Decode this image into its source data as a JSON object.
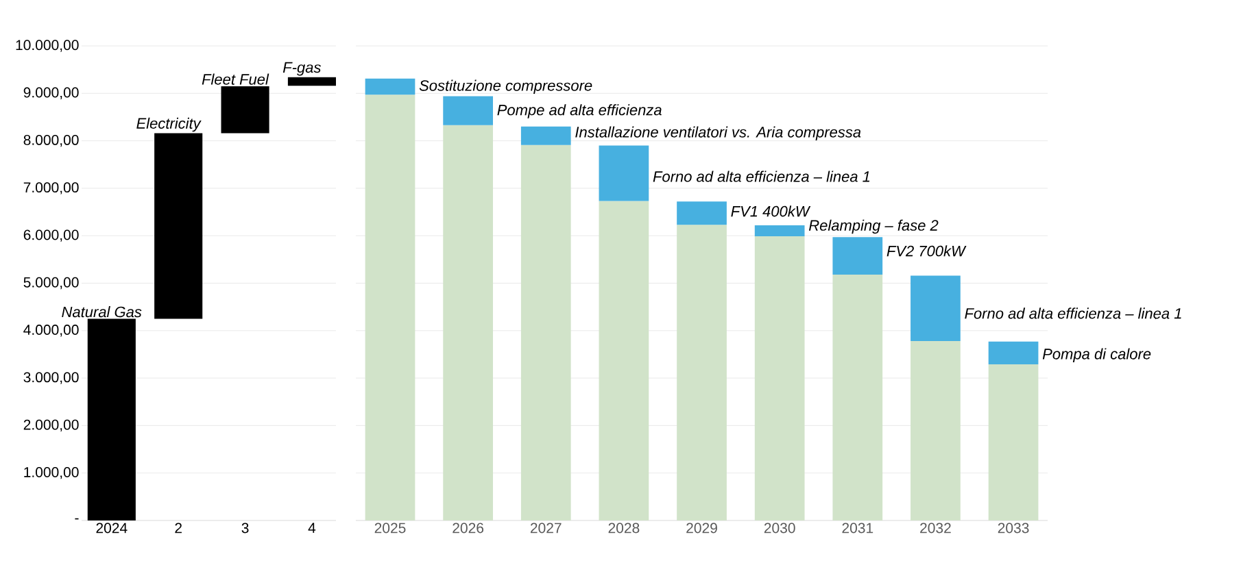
{
  "chart_data": [
    {
      "type": "bar",
      "categories": [
        "2024",
        "2",
        "3",
        "4"
      ],
      "values": [
        4250,
        3910,
        990,
        180
      ],
      "base": [
        0,
        4250,
        8160,
        9160
      ],
      "color": "#000000",
      "ylim": [
        0,
        10000
      ],
      "yticks": [
        {
          "value": 0,
          "label": "-"
        },
        {
          "value": 1000,
          "label": "1.000,00"
        },
        {
          "value": 2000,
          "label": "2.000,00"
        },
        {
          "value": 3000,
          "label": "3.000,00"
        },
        {
          "value": 4000,
          "label": "4.000,00"
        },
        {
          "value": 5000,
          "label": "5.000,00"
        },
        {
          "value": 6000,
          "label": "6.000,00"
        },
        {
          "value": 7000,
          "label": "7.000,00"
        },
        {
          "value": 8000,
          "label": "8.000,00"
        },
        {
          "value": 9000,
          "label": "9.000,00"
        },
        {
          "value": 10000,
          "label": "10.000,00"
        }
      ],
      "grid": "y",
      "annotations": [
        {
          "text": "Natural Gas",
          "x": "2024",
          "y": 4250
        },
        {
          "text": "Electricity",
          "x": "2",
          "y": 8160
        },
        {
          "text": "Fleet Fuel",
          "x": "3",
          "y": 9150
        },
        {
          "text": "F-gas",
          "x": "4",
          "y": 9340
        }
      ]
    },
    {
      "type": "bar",
      "stacked": true,
      "categories": [
        "2025",
        "2026",
        "2027",
        "2028",
        "2029",
        "2030",
        "2031",
        "2032",
        "2033"
      ],
      "series": [
        {
          "color": "#d1e3c9",
          "values": [
            8970,
            8330,
            7910,
            6730,
            6230,
            5990,
            5180,
            3780,
            3290
          ]
        },
        {
          "color": "#47b0e0",
          "values": [
            340,
            610,
            390,
            1170,
            490,
            230,
            790,
            1380,
            480
          ]
        }
      ],
      "ylim": [
        0,
        10000
      ],
      "yticks": [
        0,
        1000,
        2000,
        3000,
        4000,
        5000,
        6000,
        7000,
        8000,
        9000,
        10000
      ],
      "tick_labels": "x",
      "grid": "y",
      "annotations": [
        {
          "text": "Sostituzione compressore",
          "x": "2025",
          "y": 9310
        },
        {
          "text": "Pompe ad alta efficienza",
          "x": "2026",
          "y": 8940
        },
        {
          "text": "Installazione ventilatori vs. Aria compressa",
          "x": "2027",
          "y": 8300
        },
        {
          "text": "Forno ad alta efficienza – linea 1",
          "x": "2028",
          "y": 7900
        },
        {
          "text": "FV1 400kW",
          "x": "2029",
          "y": 6720
        },
        {
          "text": "Relamping – fase 2",
          "x": "2030",
          "y": 6220
        },
        {
          "text": "FV2 700kW",
          "x": "2031",
          "y": 5970
        },
        {
          "text": "Forno ad alta efficienza – linea 1",
          "x": "2032",
          "y": 5160
        },
        {
          "text": "Pompa di calore",
          "x": "2033",
          "y": 3770
        }
      ]
    }
  ]
}
